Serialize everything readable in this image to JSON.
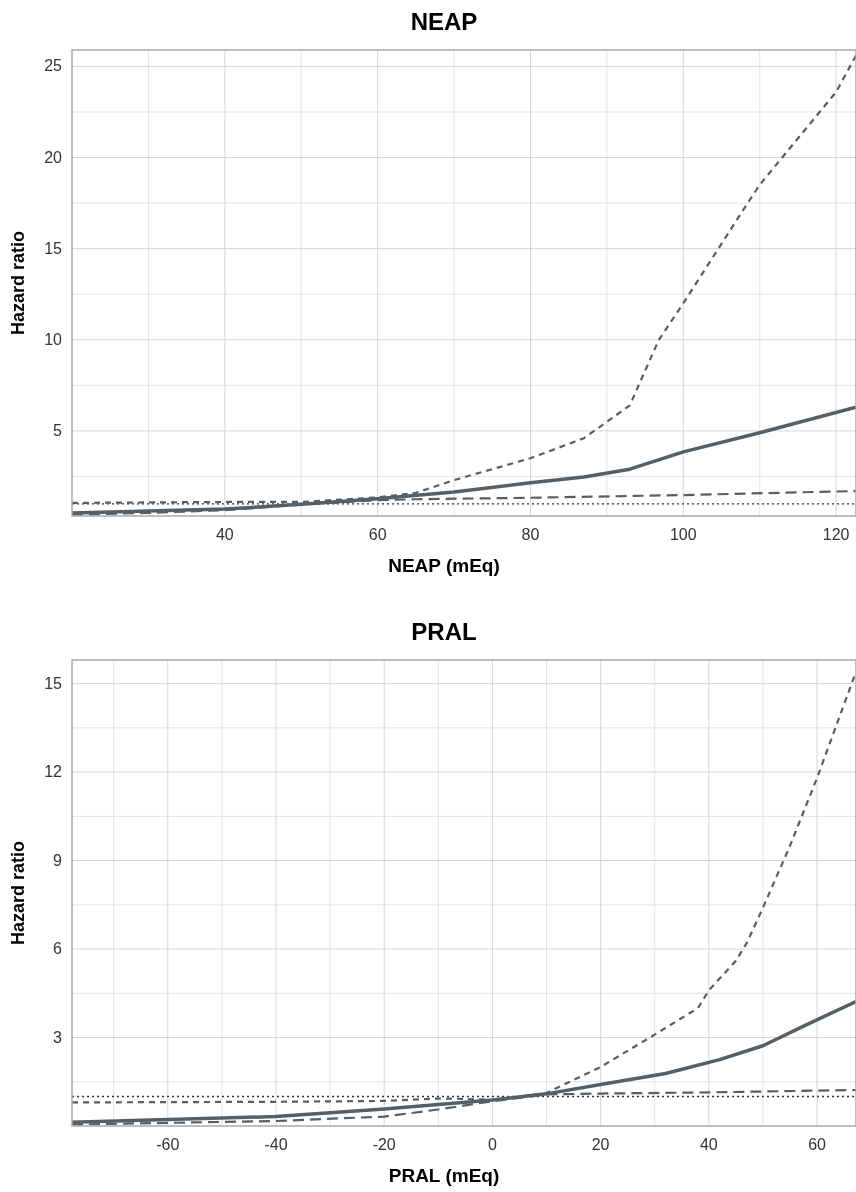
{
  "chart_data": [
    {
      "type": "line",
      "title": "NEAP",
      "xlabel": "NEAP (mEq)",
      "ylabel": "Hazard ratio",
      "xlim": [
        20,
        122.6
      ],
      "ylim": [
        0.33,
        25.9
      ],
      "xticks": [
        40,
        60,
        80,
        100,
        120
      ],
      "yticks": [
        5,
        10,
        15,
        20,
        25
      ],
      "grid": true,
      "ref_lines": [
        {
          "axis": "y",
          "value": 1,
          "color": "#333333",
          "line_style": "dotted"
        }
      ],
      "series": [
        {
          "color": "#565f66",
          "line_style": "solid",
          "x": [
            20,
            40,
            50,
            60,
            70,
            80,
            87,
            93,
            100,
            110,
            122.6
          ],
          "values": [
            0.5,
            0.71,
            0.97,
            1.27,
            1.65,
            2.15,
            2.47,
            2.9,
            3.85,
            4.9,
            6.3
          ]
        },
        {
          "color": "#565f66",
          "line_style": "dashed",
          "x": [
            20,
            30,
            40,
            50,
            60,
            65,
            80,
            100,
            122.6
          ],
          "values": [
            0.4,
            0.5,
            0.65,
            0.95,
            1.2,
            1.25,
            1.33,
            1.48,
            1.7
          ]
        },
        {
          "color": "#565f66",
          "line_style": "dashed",
          "x": [
            20,
            40,
            50,
            60,
            65,
            70,
            80,
            87,
            93,
            95,
            96.8,
            100,
            107.8,
            110,
            120,
            122.6
          ],
          "values": [
            1.05,
            1.1,
            1.1,
            1.35,
            1.6,
            2.3,
            3.5,
            4.6,
            6.4,
            8.3,
            10,
            12,
            17.1,
            18.5,
            23.6,
            25.6
          ]
        }
      ]
    },
    {
      "type": "line",
      "title": "PRAL",
      "xlabel": "PRAL (mEq)",
      "ylabel": "Hazard ratio",
      "xlim": [
        -77.7,
        67.2
      ],
      "ylim": [
        0,
        15.8
      ],
      "xticks": [
        -60,
        -40,
        -20,
        0,
        20,
        40,
        60
      ],
      "yticks": [
        3,
        6,
        9,
        12,
        15
      ],
      "grid": true,
      "ref_lines": [
        {
          "axis": "y",
          "value": 1,
          "color": "#333333",
          "line_style": "dotted"
        }
      ],
      "series": [
        {
          "color": "#565f66",
          "line_style": "solid",
          "x": [
            -77.7,
            -40,
            -20,
            0,
            10,
            20,
            32,
            42,
            50,
            58,
            67.2
          ],
          "values": [
            0.13,
            0.32,
            0.58,
            0.88,
            1.09,
            1.41,
            1.78,
            2.25,
            2.72,
            3.43,
            4.22
          ]
        },
        {
          "color": "#565f66",
          "line_style": "dashed",
          "x": [
            -77.7,
            -40,
            -20,
            -10,
            0,
            10,
            20,
            40,
            67.2
          ],
          "values": [
            0.05,
            0.17,
            0.32,
            0.56,
            0.84,
            1.07,
            1.1,
            1.14,
            1.22
          ]
        },
        {
          "color": "#565f66",
          "line_style": "dashed",
          "x": [
            -77.7,
            -40,
            -20,
            -10,
            -5,
            0,
            10,
            20,
            30,
            38,
            40,
            45,
            47,
            50,
            55,
            60,
            64,
            67.2
          ],
          "values": [
            0.8,
            0.82,
            0.85,
            0.93,
            0.92,
            0.88,
            1.12,
            2.0,
            3.1,
            4.0,
            4.6,
            5.6,
            6.2,
            7.4,
            9.5,
            11.8,
            13.8,
            15.4
          ]
        }
      ]
    }
  ]
}
